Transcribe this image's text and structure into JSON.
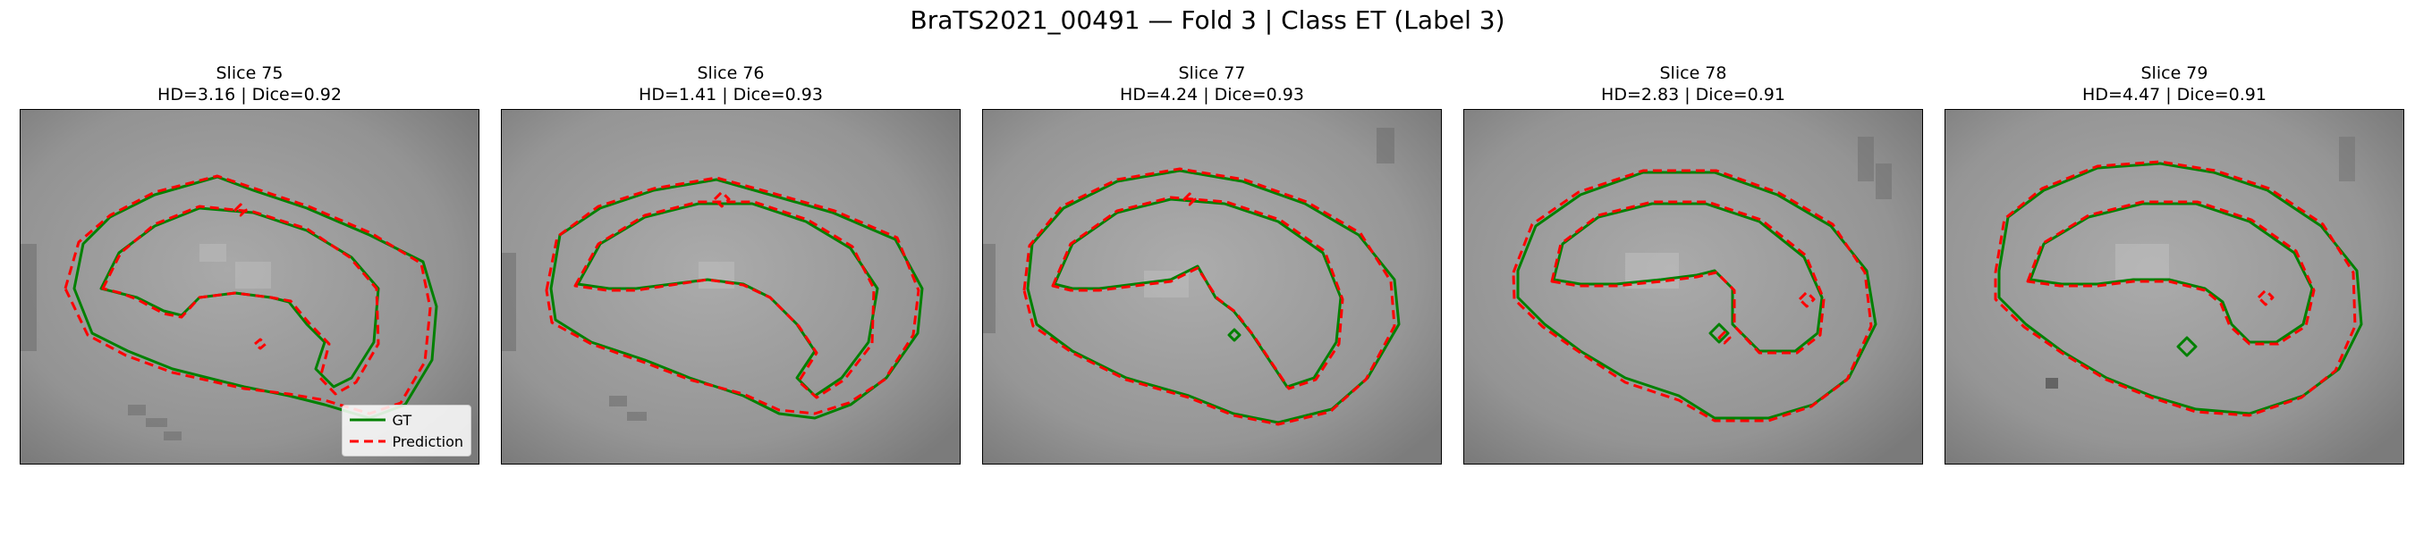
{
  "figure": {
    "title": "BraTS2021_00491 — Fold 3 | Class ET (Label 3)"
  },
  "panels": [
    {
      "slice_label": "Slice 75",
      "metrics": "HD=3.16 | Dice=0.92"
    },
    {
      "slice_label": "Slice 76",
      "metrics": "HD=1.41 | Dice=0.93"
    },
    {
      "slice_label": "Slice 77",
      "metrics": "HD=4.24 | Dice=0.93"
    },
    {
      "slice_label": "Slice 78",
      "metrics": "HD=2.83 | Dice=0.91"
    },
    {
      "slice_label": "Slice 79",
      "metrics": "HD=4.47 | Dice=0.91"
    }
  ],
  "legend": {
    "entries": [
      {
        "label": "GT",
        "color": "#008000",
        "style": "solid"
      },
      {
        "label": "Prediction",
        "color": "#ff0000",
        "style": "dashed"
      }
    ]
  }
}
